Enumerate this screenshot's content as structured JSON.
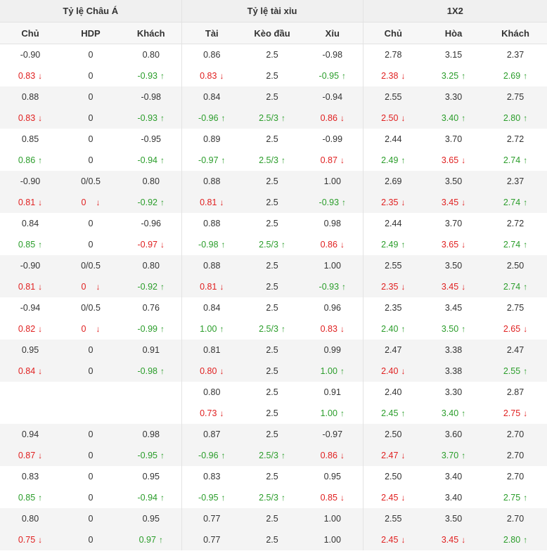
{
  "groups": [
    "Tỷ lệ Châu Á",
    "Tỷ lệ tài xỉu",
    "1X2"
  ],
  "columns": [
    "Chủ",
    "HDP",
    "Khách",
    "Tài",
    "Kèo đầu",
    "Xỉu",
    "Chủ",
    "Hòa",
    "Khách"
  ],
  "colors": {
    "up": "#2a9d2a",
    "down": "#e02020",
    "header_bg": "#f0f0f0",
    "row_shade": "#f4f4f4"
  },
  "pairs": [
    [
      [
        [
          "-0.90",
          ""
        ],
        [
          "0",
          ""
        ],
        [
          "0.80",
          ""
        ],
        [
          "0.86",
          ""
        ],
        [
          "2.5",
          ""
        ],
        [
          "-0.98",
          ""
        ],
        [
          "2.78",
          ""
        ],
        [
          "3.15",
          ""
        ],
        [
          "2.37",
          ""
        ]
      ],
      [
        [
          "0.83",
          "d"
        ],
        [
          "0",
          ""
        ],
        [
          "-0.93",
          "u"
        ],
        [
          "0.83",
          "d"
        ],
        [
          "2.5",
          ""
        ],
        [
          "-0.95",
          "u"
        ],
        [
          "2.38",
          "d"
        ],
        [
          "3.25",
          "u"
        ],
        [
          "2.69",
          "u"
        ]
      ]
    ],
    [
      [
        [
          "0.88",
          ""
        ],
        [
          "0",
          ""
        ],
        [
          "-0.98",
          ""
        ],
        [
          "0.84",
          ""
        ],
        [
          "2.5",
          ""
        ],
        [
          "-0.94",
          ""
        ],
        [
          "2.55",
          ""
        ],
        [
          "3.30",
          ""
        ],
        [
          "2.75",
          ""
        ]
      ],
      [
        [
          "0.83",
          "d"
        ],
        [
          "0",
          ""
        ],
        [
          "-0.93",
          "u"
        ],
        [
          "-0.96",
          "u"
        ],
        [
          "2.5/3",
          "u"
        ],
        [
          "0.86",
          "d"
        ],
        [
          "2.50",
          "d"
        ],
        [
          "3.40",
          "u"
        ],
        [
          "2.80",
          "u"
        ]
      ]
    ],
    [
      [
        [
          "0.85",
          ""
        ],
        [
          "0",
          ""
        ],
        [
          "-0.95",
          ""
        ],
        [
          "0.89",
          ""
        ],
        [
          "2.5",
          ""
        ],
        [
          "-0.99",
          ""
        ],
        [
          "2.44",
          ""
        ],
        [
          "3.70",
          ""
        ],
        [
          "2.72",
          ""
        ]
      ],
      [
        [
          "0.86",
          "u"
        ],
        [
          "0",
          ""
        ],
        [
          "-0.94",
          "u"
        ],
        [
          "-0.97",
          "u"
        ],
        [
          "2.5/3",
          "u"
        ],
        [
          "0.87",
          "d"
        ],
        [
          "2.49",
          "u"
        ],
        [
          "3.65",
          "d"
        ],
        [
          "2.74",
          "u"
        ]
      ]
    ],
    [
      [
        [
          "-0.90",
          ""
        ],
        [
          "0/0.5",
          ""
        ],
        [
          "0.80",
          ""
        ],
        [
          "0.88",
          ""
        ],
        [
          "2.5",
          ""
        ],
        [
          "1.00",
          ""
        ],
        [
          "2.69",
          ""
        ],
        [
          "3.50",
          ""
        ],
        [
          "2.37",
          ""
        ]
      ],
      [
        [
          "0.81",
          "d"
        ],
        [
          "0",
          "dz"
        ],
        [
          "-0.92",
          "u"
        ],
        [
          "0.81",
          "d"
        ],
        [
          "2.5",
          ""
        ],
        [
          "-0.93",
          "u"
        ],
        [
          "2.35",
          "d"
        ],
        [
          "3.45",
          "d"
        ],
        [
          "2.74",
          "u"
        ]
      ]
    ],
    [
      [
        [
          "0.84",
          ""
        ],
        [
          "0",
          ""
        ],
        [
          "-0.96",
          ""
        ],
        [
          "0.88",
          ""
        ],
        [
          "2.5",
          ""
        ],
        [
          "0.98",
          ""
        ],
        [
          "2.44",
          ""
        ],
        [
          "3.70",
          ""
        ],
        [
          "2.72",
          ""
        ]
      ],
      [
        [
          "0.85",
          "u"
        ],
        [
          "0",
          ""
        ],
        [
          "-0.97",
          "d"
        ],
        [
          "-0.98",
          "u"
        ],
        [
          "2.5/3",
          "u"
        ],
        [
          "0.86",
          "d"
        ],
        [
          "2.49",
          "u"
        ],
        [
          "3.65",
          "d"
        ],
        [
          "2.74",
          "u"
        ]
      ]
    ],
    [
      [
        [
          "-0.90",
          ""
        ],
        [
          "0/0.5",
          ""
        ],
        [
          "0.80",
          ""
        ],
        [
          "0.88",
          ""
        ],
        [
          "2.5",
          ""
        ],
        [
          "1.00",
          ""
        ],
        [
          "2.55",
          ""
        ],
        [
          "3.50",
          ""
        ],
        [
          "2.50",
          ""
        ]
      ],
      [
        [
          "0.81",
          "d"
        ],
        [
          "0",
          "dz"
        ],
        [
          "-0.92",
          "u"
        ],
        [
          "0.81",
          "d"
        ],
        [
          "2.5",
          ""
        ],
        [
          "-0.93",
          "u"
        ],
        [
          "2.35",
          "d"
        ],
        [
          "3.45",
          "d"
        ],
        [
          "2.74",
          "u"
        ]
      ]
    ],
    [
      [
        [
          "-0.94",
          ""
        ],
        [
          "0/0.5",
          ""
        ],
        [
          "0.76",
          ""
        ],
        [
          "0.84",
          ""
        ],
        [
          "2.5",
          ""
        ],
        [
          "0.96",
          ""
        ],
        [
          "2.35",
          ""
        ],
        [
          "3.45",
          ""
        ],
        [
          "2.75",
          ""
        ]
      ],
      [
        [
          "0.82",
          "d"
        ],
        [
          "0",
          "dz"
        ],
        [
          "-0.99",
          "u"
        ],
        [
          "1.00",
          "u"
        ],
        [
          "2.5/3",
          "u"
        ],
        [
          "0.83",
          "d"
        ],
        [
          "2.40",
          "u"
        ],
        [
          "3.50",
          "u"
        ],
        [
          "2.65",
          "d"
        ]
      ]
    ],
    [
      [
        [
          "0.95",
          ""
        ],
        [
          "0",
          ""
        ],
        [
          "0.91",
          ""
        ],
        [
          "0.81",
          ""
        ],
        [
          "2.5",
          ""
        ],
        [
          "0.99",
          ""
        ],
        [
          "2.47",
          ""
        ],
        [
          "3.38",
          ""
        ],
        [
          "2.47",
          ""
        ]
      ],
      [
        [
          "0.84",
          "d"
        ],
        [
          "0",
          ""
        ],
        [
          "-0.98",
          "u"
        ],
        [
          "0.80",
          "d"
        ],
        [
          "2.5",
          ""
        ],
        [
          "1.00",
          "u"
        ],
        [
          "2.40",
          "d"
        ],
        [
          "3.38",
          ""
        ],
        [
          "2.55",
          "u"
        ]
      ]
    ],
    [
      [
        [
          "",
          ""
        ],
        [
          "",
          ""
        ],
        [
          "",
          ""
        ],
        [
          "0.80",
          ""
        ],
        [
          "2.5",
          ""
        ],
        [
          "0.91",
          ""
        ],
        [
          "2.40",
          ""
        ],
        [
          "3.30",
          ""
        ],
        [
          "2.87",
          ""
        ]
      ],
      [
        [
          "",
          ""
        ],
        [
          "",
          ""
        ],
        [
          "",
          ""
        ],
        [
          "0.73",
          "d"
        ],
        [
          "2.5",
          ""
        ],
        [
          "1.00",
          "u"
        ],
        [
          "2.45",
          "u"
        ],
        [
          "3.40",
          "u"
        ],
        [
          "2.75",
          "d"
        ]
      ]
    ],
    [
      [
        [
          "0.94",
          ""
        ],
        [
          "0",
          ""
        ],
        [
          "0.98",
          ""
        ],
        [
          "0.87",
          ""
        ],
        [
          "2.5",
          ""
        ],
        [
          "-0.97",
          ""
        ],
        [
          "2.50",
          ""
        ],
        [
          "3.60",
          ""
        ],
        [
          "2.70",
          ""
        ]
      ],
      [
        [
          "0.87",
          "d"
        ],
        [
          "0",
          ""
        ],
        [
          "-0.95",
          "u"
        ],
        [
          "-0.96",
          "u"
        ],
        [
          "2.5/3",
          "u"
        ],
        [
          "0.86",
          "d"
        ],
        [
          "2.47",
          "d"
        ],
        [
          "3.70",
          "u"
        ],
        [
          "2.70",
          ""
        ]
      ]
    ],
    [
      [
        [
          "0.83",
          ""
        ],
        [
          "0",
          ""
        ],
        [
          "0.95",
          ""
        ],
        [
          "0.83",
          ""
        ],
        [
          "2.5",
          ""
        ],
        [
          "0.95",
          ""
        ],
        [
          "2.50",
          ""
        ],
        [
          "3.40",
          ""
        ],
        [
          "2.70",
          ""
        ]
      ],
      [
        [
          "0.85",
          "u"
        ],
        [
          "0",
          ""
        ],
        [
          "-0.94",
          "u"
        ],
        [
          "-0.95",
          "u"
        ],
        [
          "2.5/3",
          "u"
        ],
        [
          "0.85",
          "d"
        ],
        [
          "2.45",
          "d"
        ],
        [
          "3.40",
          ""
        ],
        [
          "2.75",
          "u"
        ]
      ]
    ],
    [
      [
        [
          "0.80",
          ""
        ],
        [
          "0",
          ""
        ],
        [
          "0.95",
          ""
        ],
        [
          "0.77",
          ""
        ],
        [
          "2.5",
          ""
        ],
        [
          "1.00",
          ""
        ],
        [
          "2.55",
          ""
        ],
        [
          "3.50",
          ""
        ],
        [
          "2.70",
          ""
        ]
      ],
      [
        [
          "0.75",
          "d"
        ],
        [
          "0",
          ""
        ],
        [
          "0.97",
          "u"
        ],
        [
          "0.77",
          ""
        ],
        [
          "2.5",
          ""
        ],
        [
          "1.00",
          ""
        ],
        [
          "2.45",
          "d"
        ],
        [
          "3.45",
          "d"
        ],
        [
          "2.80",
          "u"
        ]
      ]
    ]
  ]
}
